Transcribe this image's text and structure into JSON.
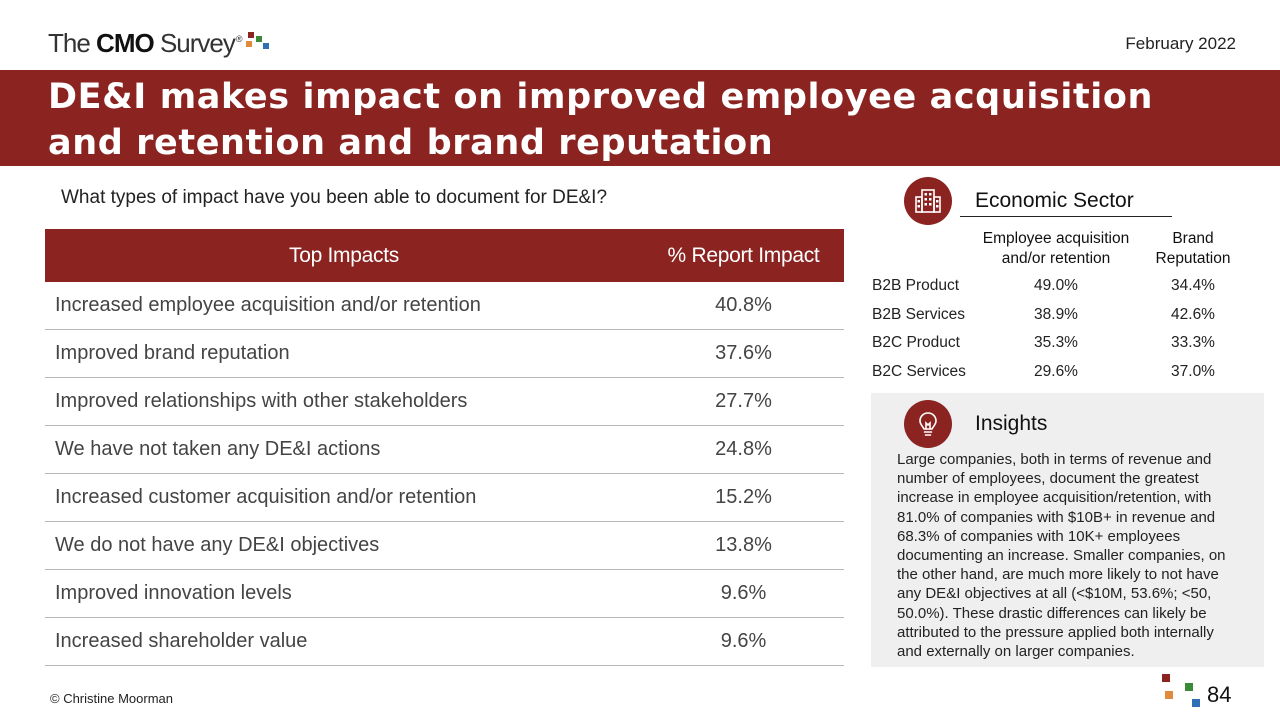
{
  "header": {
    "logo_pre": "The",
    "logo_bold": "CMO",
    "logo_post": "Survey",
    "logo_reg": "®",
    "date": "February 2022"
  },
  "title": "DE&I makes impact on improved employee acquisition and retention and brand reputation",
  "question": "What types of impact have you been able to document for DE&I?",
  "table": {
    "headers": [
      "Top Impacts",
      "% Report Impact"
    ],
    "rows": [
      {
        "label": "Increased employee acquisition and/or retention",
        "value": "40.8%"
      },
      {
        "label": "Improved brand reputation",
        "value": "37.6%"
      },
      {
        "label": "Improved relationships with other stakeholders",
        "value": "27.7%"
      },
      {
        "label": "We have not taken any DE&I actions",
        "value": "24.8%"
      },
      {
        "label": "Increased customer acquisition and/or retention",
        "value": "15.2%"
      },
      {
        "label": "We do not have any DE&I objectives",
        "value": "13.8%"
      },
      {
        "label": "Improved innovation levels",
        "value": "9.6%"
      },
      {
        "label": "Increased shareholder value",
        "value": "9.6%"
      }
    ]
  },
  "sector": {
    "title": "Economic Sector",
    "col1": "Employee acquisition and/or retention",
    "col2": "Brand Reputation",
    "rows": [
      {
        "name": "B2B Product",
        "v1": "49.0%",
        "v2": "34.4%"
      },
      {
        "name": "B2B Services",
        "v1": "38.9%",
        "v2": "42.6%"
      },
      {
        "name": "B2C Product",
        "v1": "35.3%",
        "v2": "33.3%"
      },
      {
        "name": "B2C Services",
        "v1": "29.6%",
        "v2": "37.0%"
      }
    ]
  },
  "insights": {
    "title": "Insights",
    "text": "Large companies, both in terms of revenue and number of employees, document the greatest increase in employee acquisition/retention, with 81.0% of companies with $10B+ in revenue and 68.3% of companies with 10K+ employees documenting an increase. Smaller companies, on the other hand, are much more likely to not have any DE&I objectives at all (<$10M, 53.6%; <50, 50.0%). These drastic differences can likely be attributed to the pressure applied both internally and externally on larger companies."
  },
  "footer": {
    "copyright": "© Christine Moorman",
    "page": "84"
  },
  "colors": {
    "brand_red": "#8b2320",
    "square_red": "#8b2320",
    "square_orange": "#e08a3c",
    "square_green": "#3a8a3a",
    "square_blue": "#2e6fb5"
  },
  "icons": {
    "sector": "building-icon",
    "insights": "lightbulb-icon"
  }
}
